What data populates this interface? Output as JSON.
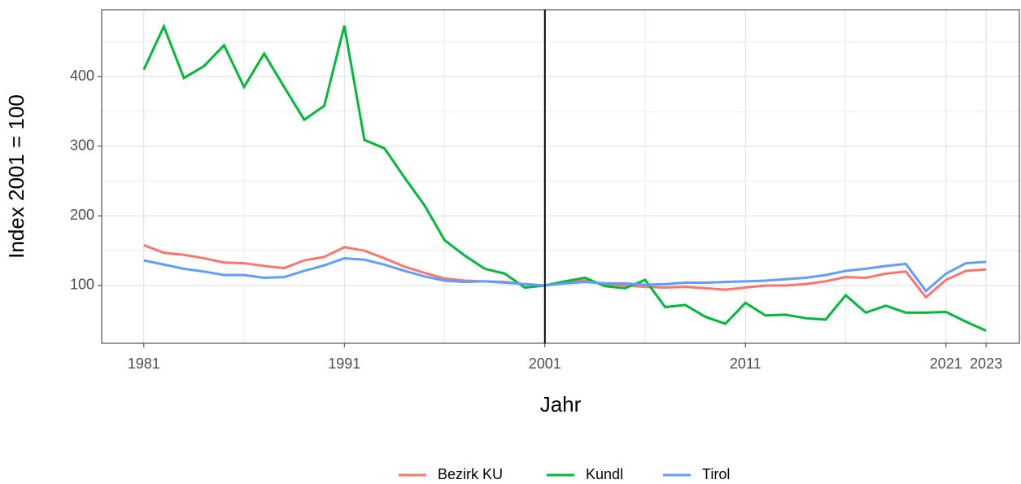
{
  "chart_data": {
    "type": "line",
    "x_label": "Jahr",
    "y_label": "Index 2001 = 100",
    "x": [
      1981,
      1982,
      1983,
      1984,
      1985,
      1986,
      1987,
      1988,
      1989,
      1990,
      1991,
      1992,
      1993,
      1994,
      1995,
      1996,
      1997,
      1998,
      1999,
      2000,
      2001,
      2002,
      2003,
      2004,
      2005,
      2006,
      2007,
      2008,
      2009,
      2010,
      2011,
      2012,
      2013,
      2014,
      2015,
      2016,
      2017,
      2018,
      2019,
      2020,
      2021,
      2022,
      2023
    ],
    "series": [
      {
        "name": "Bezirk KU",
        "color": "#f8766d",
        "values": [
          158,
          147,
          144,
          139,
          133,
          132,
          128,
          125,
          136,
          141,
          155,
          150,
          139,
          127,
          118,
          110,
          107,
          106,
          105,
          102,
          100,
          104,
          107,
          102,
          100,
          98,
          97,
          98,
          96,
          94,
          97,
          100,
          100,
          102,
          106,
          112,
          111,
          117,
          120,
          83,
          108,
          121,
          123
        ]
      },
      {
        "name": "Kundl",
        "color": "#00ba38",
        "values": [
          410,
          472,
          398,
          415,
          445,
          385,
          433,
          385,
          338,
          358,
          473,
          309,
          297,
          255,
          215,
          165,
          143,
          124,
          117,
          97,
          100,
          106,
          111,
          99,
          96,
          108,
          69,
          72,
          55,
          45,
          75,
          57,
          58,
          53,
          51,
          86,
          61,
          71,
          61,
          61,
          62,
          48,
          35
        ]
      },
      {
        "name": "Tirol",
        "color": "#619cff",
        "values": [
          136,
          130,
          124,
          120,
          115,
          115,
          111,
          112,
          121,
          129,
          139,
          137,
          130,
          121,
          113,
          107,
          105,
          106,
          104,
          102,
          100,
          103,
          105,
          103,
          103,
          101,
          102,
          104,
          104,
          105,
          106,
          107,
          109,
          111,
          115,
          121,
          124,
          128,
          131,
          92,
          117,
          132,
          134
        ]
      }
    ],
    "xlim": [
      1978.9,
      2024.66
    ],
    "xticks": [
      1981,
      1991,
      2001,
      2011,
      2021,
      2023
    ],
    "xminor_ticks": [
      1986,
      1996,
      2006,
      2016
    ],
    "ylim": [
      17,
      496
    ],
    "yticks": [
      100,
      200,
      300,
      400
    ],
    "yminor_ticks": [
      150,
      250,
      350,
      450
    ],
    "vline": 2001,
    "grid": true,
    "legend_position": "bottom"
  }
}
